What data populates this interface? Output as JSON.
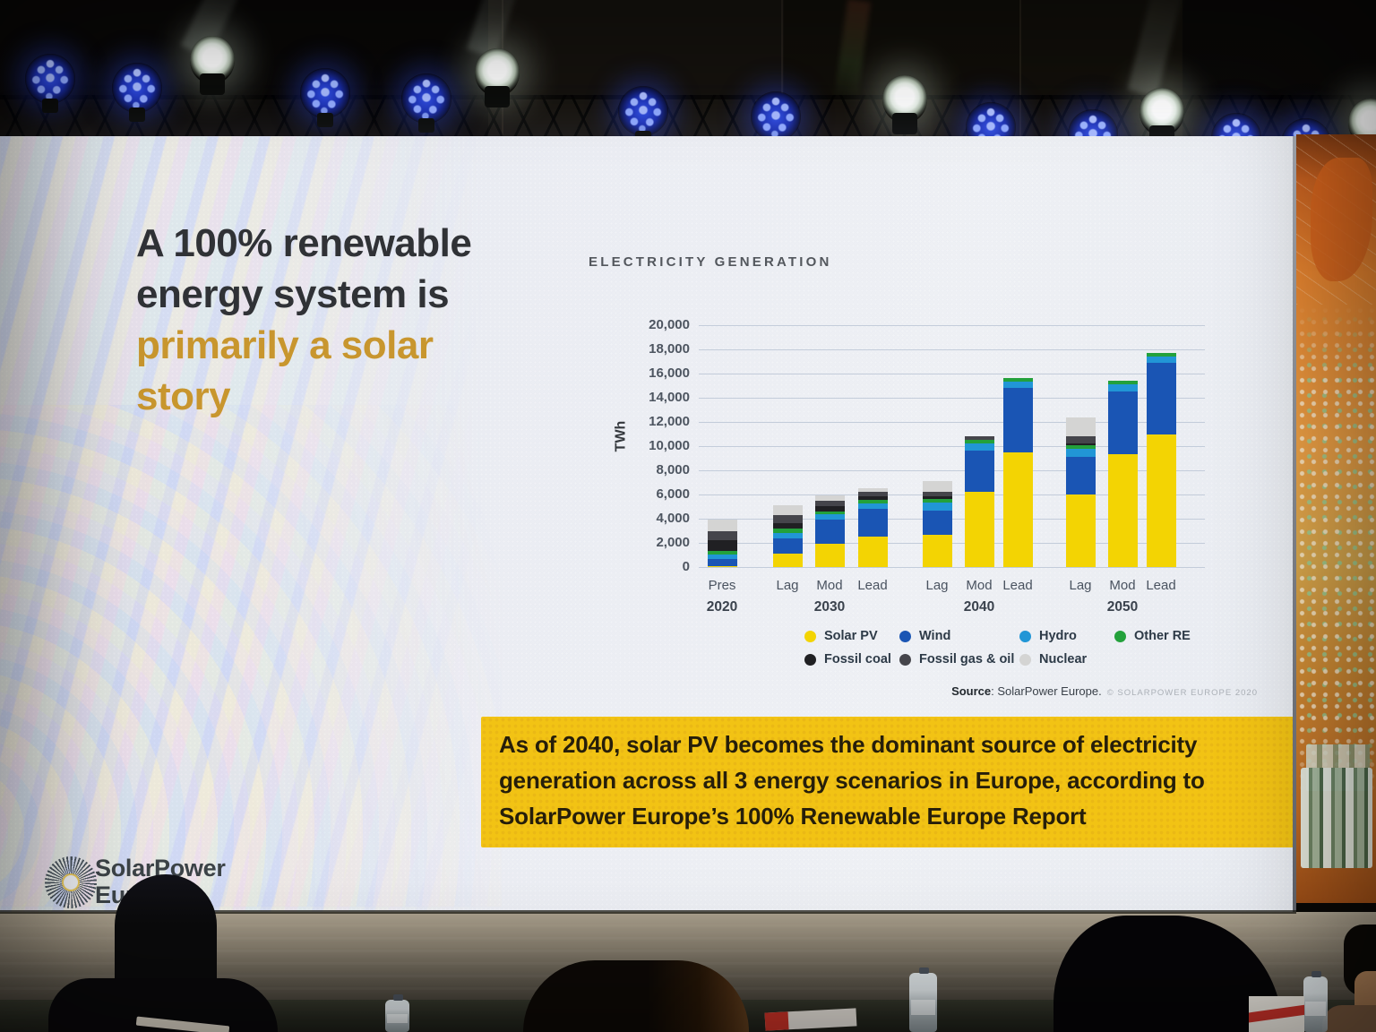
{
  "slide": {
    "title": {
      "dark_line1": "A 100% renewable",
      "dark_line2": "energy system is",
      "gold_line1": "primarily a solar",
      "gold_line2": "story"
    },
    "callout": {
      "line1": "As of 2040, solar PV becomes the dominant source of electricity",
      "line2": "generation across all 3 energy scenarios in Europe, according to",
      "line3": "SolarPower Europe’s 100% Renewable Europe Report",
      "bg_color": "#f2c314"
    },
    "source": {
      "label": "Source",
      "text": ": SolarPower Europe.",
      "copyright": "© SOLARPOWER EUROPE 2020"
    },
    "logo": {
      "line1": "SolarPower",
      "line2": "Europe"
    }
  },
  "chart_data": {
    "type": "bar",
    "stacked": true,
    "title": "ELECTRICITY GENERATION",
    "ylabel": "TWh",
    "ylim": [
      0,
      20000
    ],
    "ytick_step": 2000,
    "grid": true,
    "legend_position": "bottom",
    "ytick_labels": [
      "20,000",
      "18,000",
      "16,000",
      "14,000",
      "12,000",
      "10,000",
      "8,000",
      "6,000",
      "4,000",
      "2,000",
      "0"
    ],
    "series_order": [
      "Solar PV",
      "Wind",
      "Hydro",
      "Other RE",
      "Fossil coal",
      "Fossil gas & oil",
      "Nuclear"
    ],
    "colors": {
      "Solar PV": "#f3d403",
      "Wind": "#1a55b4",
      "Hydro": "#2196d6",
      "Other RE": "#23a13b",
      "Fossil coal": "#202023",
      "Fossil gas & oil": "#45454b",
      "Nuclear": "#d4d4d3"
    },
    "groups": [
      {
        "year": "2020",
        "bars": [
          {
            "label": "Pres",
            "values": [
              100,
              550,
              400,
              250,
              900,
              800,
              900
            ]
          }
        ]
      },
      {
        "year": "2030",
        "bars": [
          {
            "label": "Lag",
            "values": [
              1100,
              1300,
              450,
              300,
              450,
              700,
              800
            ]
          },
          {
            "label": "Mod",
            "values": [
              1900,
              2000,
              450,
              250,
              450,
              450,
              400
            ]
          },
          {
            "label": "Lead",
            "values": [
              2500,
              2300,
              450,
              300,
              300,
              350,
              300
            ]
          }
        ]
      },
      {
        "year": "2040",
        "bars": [
          {
            "label": "Lag",
            "values": [
              2700,
              2000,
              600,
              300,
              250,
              350,
              900
            ]
          },
          {
            "label": "Mod",
            "values": [
              6200,
              3400,
              600,
              300,
              0,
              300,
              0
            ]
          },
          {
            "label": "Lead",
            "values": [
              9500,
              5300,
              500,
              300,
              0,
              0,
              0
            ]
          }
        ]
      },
      {
        "year": "2050",
        "bars": [
          {
            "label": "Lag",
            "values": [
              6000,
              3100,
              700,
              250,
              150,
              600,
              1600
            ]
          },
          {
            "label": "Mod",
            "values": [
              9300,
              5200,
              600,
              300,
              0,
              0,
              0
            ]
          },
          {
            "label": "Lead",
            "values": [
              11000,
              5900,
              500,
              300,
              0,
              0,
              0
            ]
          }
        ]
      }
    ]
  }
}
